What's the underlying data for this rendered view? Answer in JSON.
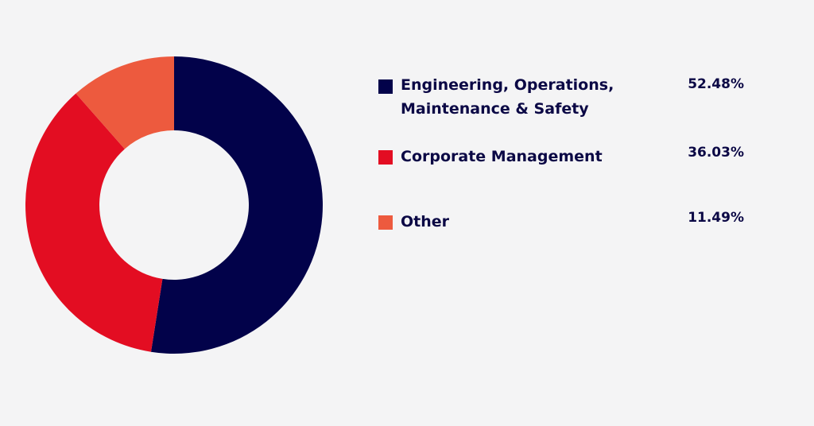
{
  "chart_data": {
    "type": "pie",
    "donut": true,
    "legend_position": "right",
    "slices": [
      {
        "label": "Engineering, Operations, Maintenance & Safety",
        "value": 52.48,
        "display": "52.48%",
        "color": "#02024a"
      },
      {
        "label": "Corporate Management",
        "value": 36.03,
        "display": "36.03%",
        "color": "#e30d22"
      },
      {
        "label": "Other",
        "value": 11.49,
        "display": "11.49%",
        "color": "#ed5a3e"
      }
    ]
  }
}
